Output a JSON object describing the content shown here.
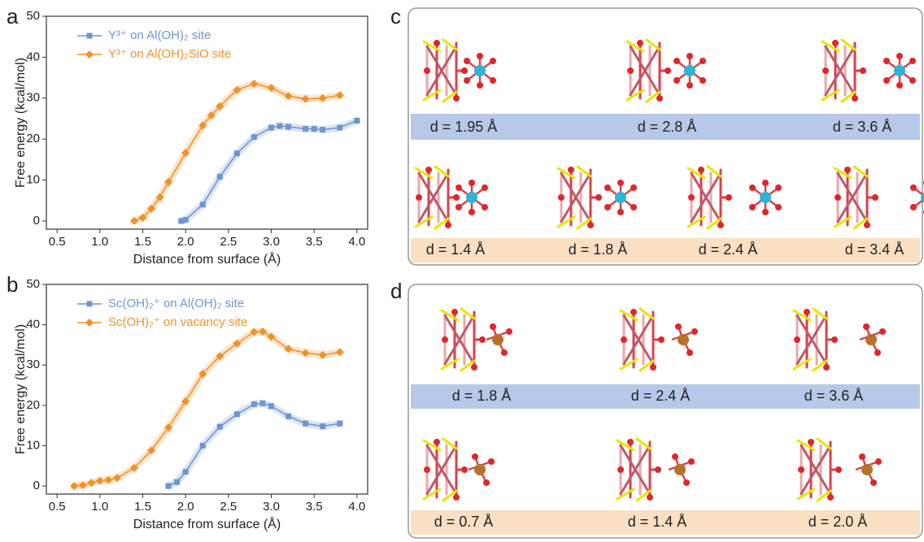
{
  "chart_data": [
    {
      "type": "line",
      "label": "a",
      "x_label": "Distance from surface (Å)",
      "y_label": "Free energy (kcal/mol)",
      "xlim": [
        0.375,
        4.125
      ],
      "ylim": [
        -2,
        50
      ],
      "xticks": [
        0.5,
        {
          "value": 1.0,
          "label": "1.0"
        },
        1.5,
        {
          "value": 2.0,
          "label": "2.0"
        },
        2.5,
        {
          "value": 3.0,
          "label": "3.0"
        },
        3.5,
        {
          "value": 4.0,
          "label": "4.0"
        }
      ],
      "yticks": [
        0,
        10,
        20,
        30,
        40,
        50
      ],
      "legend": "upper left",
      "series": [
        {
          "name": "Y³⁺ on Al(OH)₂ site",
          "color": "#6f95cf",
          "marker": "square",
          "x": [
            1.95,
            2.0,
            2.2,
            2.4,
            2.6,
            2.8,
            3.0,
            3.1,
            3.2,
            3.4,
            3.5,
            3.6,
            3.8,
            4.0
          ],
          "values": [
            0,
            0.3,
            4,
            10.8,
            16.5,
            20.5,
            22.8,
            23.2,
            23,
            22.5,
            22.5,
            22.3,
            22.8,
            24.5
          ]
        },
        {
          "name": "Y³⁺ on Al(OH)₂SiO site",
          "color": "#f0922b",
          "marker": "diamond",
          "x": [
            1.4,
            1.5,
            1.6,
            1.7,
            1.8,
            2.0,
            2.2,
            2.3,
            2.4,
            2.6,
            2.8,
            3.0,
            3.2,
            3.4,
            3.6,
            3.8
          ],
          "values": [
            0,
            0.8,
            3,
            5.8,
            9.5,
            16.6,
            23.3,
            25.8,
            28,
            32,
            33.5,
            32.5,
            30.5,
            29.8,
            30,
            30.7
          ]
        }
      ]
    },
    {
      "type": "line",
      "label": "b",
      "x_label": "Distance from surface (Å)",
      "y_label": "Free energy (kcal/mol)",
      "xlim": [
        0.375,
        4.125
      ],
      "ylim": [
        -2,
        50
      ],
      "xticks": [
        0.5,
        {
          "value": 1.0,
          "label": "1.0"
        },
        1.5,
        {
          "value": 2.0,
          "label": "2.0"
        },
        2.5,
        {
          "value": 3.0,
          "label": "3.0"
        },
        3.5,
        {
          "value": 4.0,
          "label": "4.0"
        }
      ],
      "yticks": [
        0,
        10,
        20,
        30,
        40,
        50
      ],
      "legend": "upper left",
      "series": [
        {
          "name": "Sc(OH)₂⁺ on Al(OH)₂ site",
          "color": "#6f95cf",
          "marker": "square",
          "x": [
            1.8,
            1.9,
            2.0,
            2.2,
            2.4,
            2.6,
            2.8,
            2.9,
            3.0,
            3.2,
            3.4,
            3.6,
            3.8
          ],
          "values": [
            0,
            1,
            3.5,
            10,
            14.7,
            17.8,
            20.3,
            20.5,
            19.8,
            17.3,
            15.5,
            14.8,
            15.5
          ]
        },
        {
          "name": "Sc(OH)₂⁺ on vacancy site",
          "color": "#f0922b",
          "marker": "diamond",
          "x": [
            0.7,
            0.8,
            0.9,
            1.0,
            1.1,
            1.2,
            1.4,
            1.6,
            1.8,
            2.0,
            2.2,
            2.4,
            2.6,
            2.8,
            2.9,
            3.0,
            3.2,
            3.4,
            3.6,
            3.8
          ],
          "values": [
            0,
            0.2,
            0.8,
            1.3,
            1.5,
            2,
            4.5,
            8.8,
            14.5,
            21,
            27.8,
            32.2,
            35.3,
            38.2,
            38.3,
            37,
            34,
            33,
            32.5,
            33.2
          ]
        }
      ]
    }
  ],
  "panels": [
    {
      "label": "c",
      "rows": [
        [
          "d = 1.95 Å",
          "d = 2.8 Å",
          "d = 3.6 Å"
        ],
        [
          "d = 1.4 Å",
          "d = 1.8 Å",
          "d = 2.4 Å",
          "d = 3.4 Å"
        ]
      ]
    },
    {
      "label": "d",
      "rows": [
        [
          "d = 1.8 Å",
          "d = 2.4 Å",
          "d = 3.6 Å"
        ],
        [
          "d = 0.7 Å",
          "d = 1.4 Å",
          "d = 2.0 Å"
        ]
      ]
    }
  ]
}
